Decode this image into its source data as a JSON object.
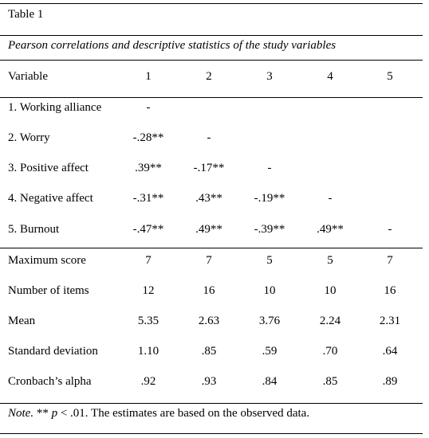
{
  "table_label": "Table 1",
  "caption": "Pearson correlations and descriptive statistics of the study variables",
  "header": [
    "Variable",
    "1",
    "2",
    "3",
    "4",
    "5"
  ],
  "correlation_rows": [
    {
      "cells": [
        "1. Working alliance",
        "-",
        "",
        "",
        "",
        ""
      ]
    },
    {
      "cells": [
        "2. Worry",
        "-.28**",
        "-",
        "",
        "",
        ""
      ]
    },
    {
      "cells": [
        "3. Positive affect",
        ".39**",
        "-.17**",
        "-",
        "",
        ""
      ]
    },
    {
      "cells": [
        "4. Negative affect",
        "-.31**",
        ".43**",
        "-.19**",
        "-",
        ""
      ]
    },
    {
      "cells": [
        "5. Burnout",
        "-.47**",
        ".49**",
        "-.39**",
        ".49**",
        "-"
      ]
    }
  ],
  "descriptive_rows": [
    {
      "cells": [
        "Maximum score",
        "7",
        "7",
        "5",
        "5",
        "7"
      ]
    },
    {
      "cells": [
        "Number of items",
        "12",
        "16",
        "10",
        "10",
        "16"
      ]
    },
    {
      "cells": [
        "Mean",
        "5.35",
        "2.63",
        "3.76",
        "2.24",
        "2.31"
      ]
    },
    {
      "cells": [
        "Standard deviation",
        "1.10",
        ".85",
        ".59",
        ".70",
        ".64"
      ]
    },
    {
      "cells": [
        "Cronbach’s alpha",
        ".92",
        ".93",
        ".84",
        ".85",
        ".89"
      ]
    }
  ],
  "note": {
    "label": "Note.",
    "stars": " ** ",
    "p": "p",
    "rest": " < .01. The estimates are based on the observed data."
  }
}
